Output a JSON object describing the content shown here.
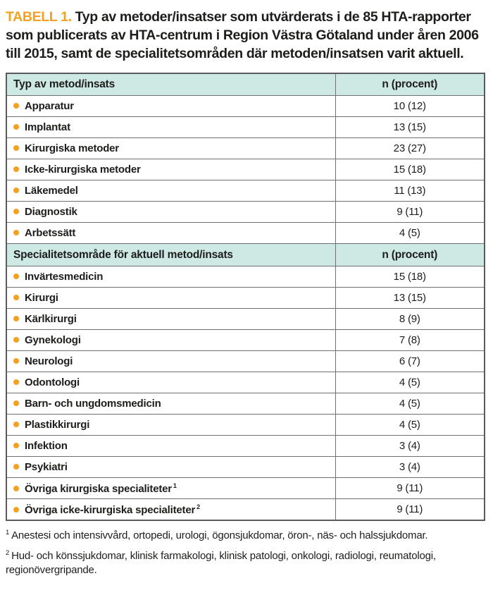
{
  "colors": {
    "accent": "#F5A11F",
    "header_bg": "#CEE8E4",
    "border": "#707175",
    "border_dark": "#5A5B5E",
    "text": "#1D1D1B"
  },
  "title": {
    "label": "TABELL 1.",
    "text": "Typ av metoder/insatser som utvärderats i de 85 HTA-rapporter som publicerats av HTA-centrum i Region Västra Götaland under åren 2006 till 2015, samt de specialitetsområden där metoden/insatsen varit aktuell."
  },
  "table": {
    "sections": [
      {
        "header": {
          "col1": "Typ av metod/insats",
          "col2": "n (procent)"
        },
        "rows": [
          {
            "label": "Apparatur",
            "value": "10 (12)"
          },
          {
            "label": "Implantat",
            "value": "13 (15)"
          },
          {
            "label": "Kirurgiska metoder",
            "value": "23 (27)"
          },
          {
            "label": "Icke-kirurgiska metoder",
            "value": "15 (18)"
          },
          {
            "label": "Läkemedel",
            "value": "11 (13)"
          },
          {
            "label": "Diagnostik",
            "value": "9 (11)"
          },
          {
            "label": "Arbetssätt",
            "value": "4 (5)"
          }
        ]
      },
      {
        "header": {
          "col1": "Specialitetsområde för aktuell metod/insats",
          "col2": "n (procent)"
        },
        "rows": [
          {
            "label": "Invärtesmedicin",
            "value": "15 (18)"
          },
          {
            "label": "Kirurgi",
            "value": "13 (15)"
          },
          {
            "label": "Kärlkirurgi",
            "value": "8 (9)"
          },
          {
            "label": "Gynekologi",
            "value": "7 (8)"
          },
          {
            "label": "Neurologi",
            "value": "6 (7)"
          },
          {
            "label": "Odontologi",
            "value": "4 (5)"
          },
          {
            "label": "Barn- och ungdomsmedicin",
            "value": "4 (5)"
          },
          {
            "label": "Plastikkirurgi",
            "value": "4 (5)"
          },
          {
            "label": "Infektion",
            "value": "3 (4)"
          },
          {
            "label": "Psykiatri",
            "value": "3 (4)"
          },
          {
            "label": "Övriga kirurgiska specialiteter",
            "sup": "1",
            "value": "9 (11)"
          },
          {
            "label": "Övriga icke-kirurgiska specialiteter",
            "sup": "2",
            "value": "9 (11)"
          }
        ]
      }
    ]
  },
  "footnotes": [
    {
      "sup": "1",
      "text": "Anestesi och intensivvård, ortopedi, urologi, ögonsjukdomar, öron-, näs- och halssjukdomar."
    },
    {
      "sup": "2",
      "text": "Hud- och könssjukdomar, klinisk farmakologi, klinisk patologi, onkologi, radiologi, reumatologi, regionövergripande."
    }
  ]
}
